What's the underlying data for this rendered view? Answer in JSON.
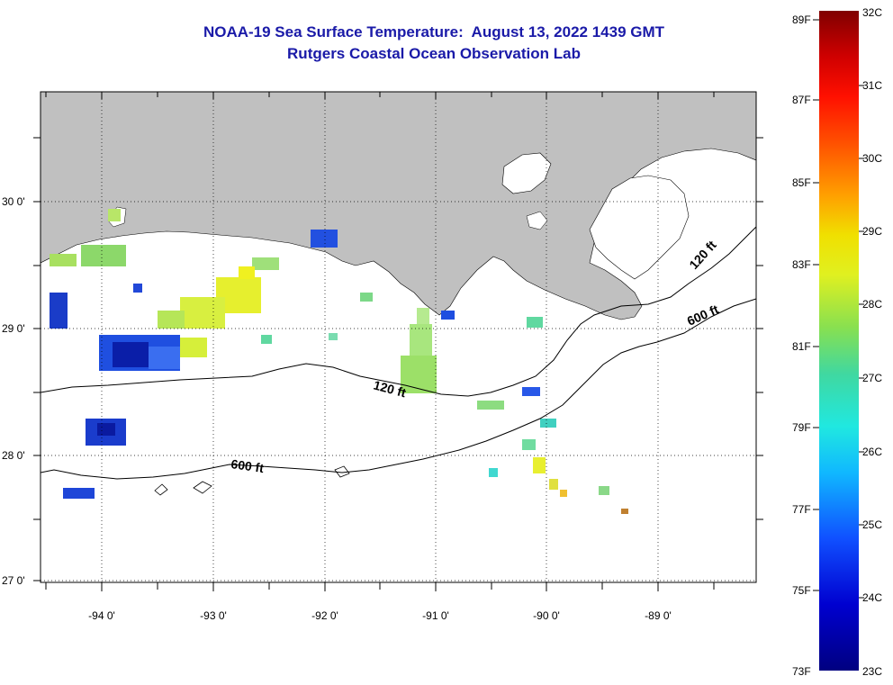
{
  "title": {
    "line1": "NOAA-19 Sea Surface Temperature:  August 13, 2022 1439 GMT",
    "line2": "Rutgers Coastal Ocean Observation Lab"
  },
  "map": {
    "lon_labels": [
      "-94 0'",
      "-93 0'",
      "-92 0'",
      "-91 0'",
      "-90 0'",
      "-89 0'"
    ],
    "lat_labels": [
      "30 0'",
      "29 0'",
      "28 0'",
      "27 0'"
    ],
    "contours": [
      {
        "label": "120 ft"
      },
      {
        "label": "600 ft"
      },
      {
        "label": "120 ft"
      },
      {
        "label": "600 ft"
      }
    ],
    "land_color": "#c0c0c0",
    "no_data_color": "#ffffff"
  },
  "colorbar": {
    "fahrenheit_labels": [
      "89F",
      "87F",
      "85F",
      "83F",
      "81F",
      "79F",
      "77F",
      "75F",
      "73F"
    ],
    "celsius_labels": [
      "32C",
      "31C",
      "30C",
      "29C",
      "28C",
      "27C",
      "26C",
      "25C",
      "24C",
      "23C"
    ],
    "min_c": 23,
    "max_c": 32
  }
}
